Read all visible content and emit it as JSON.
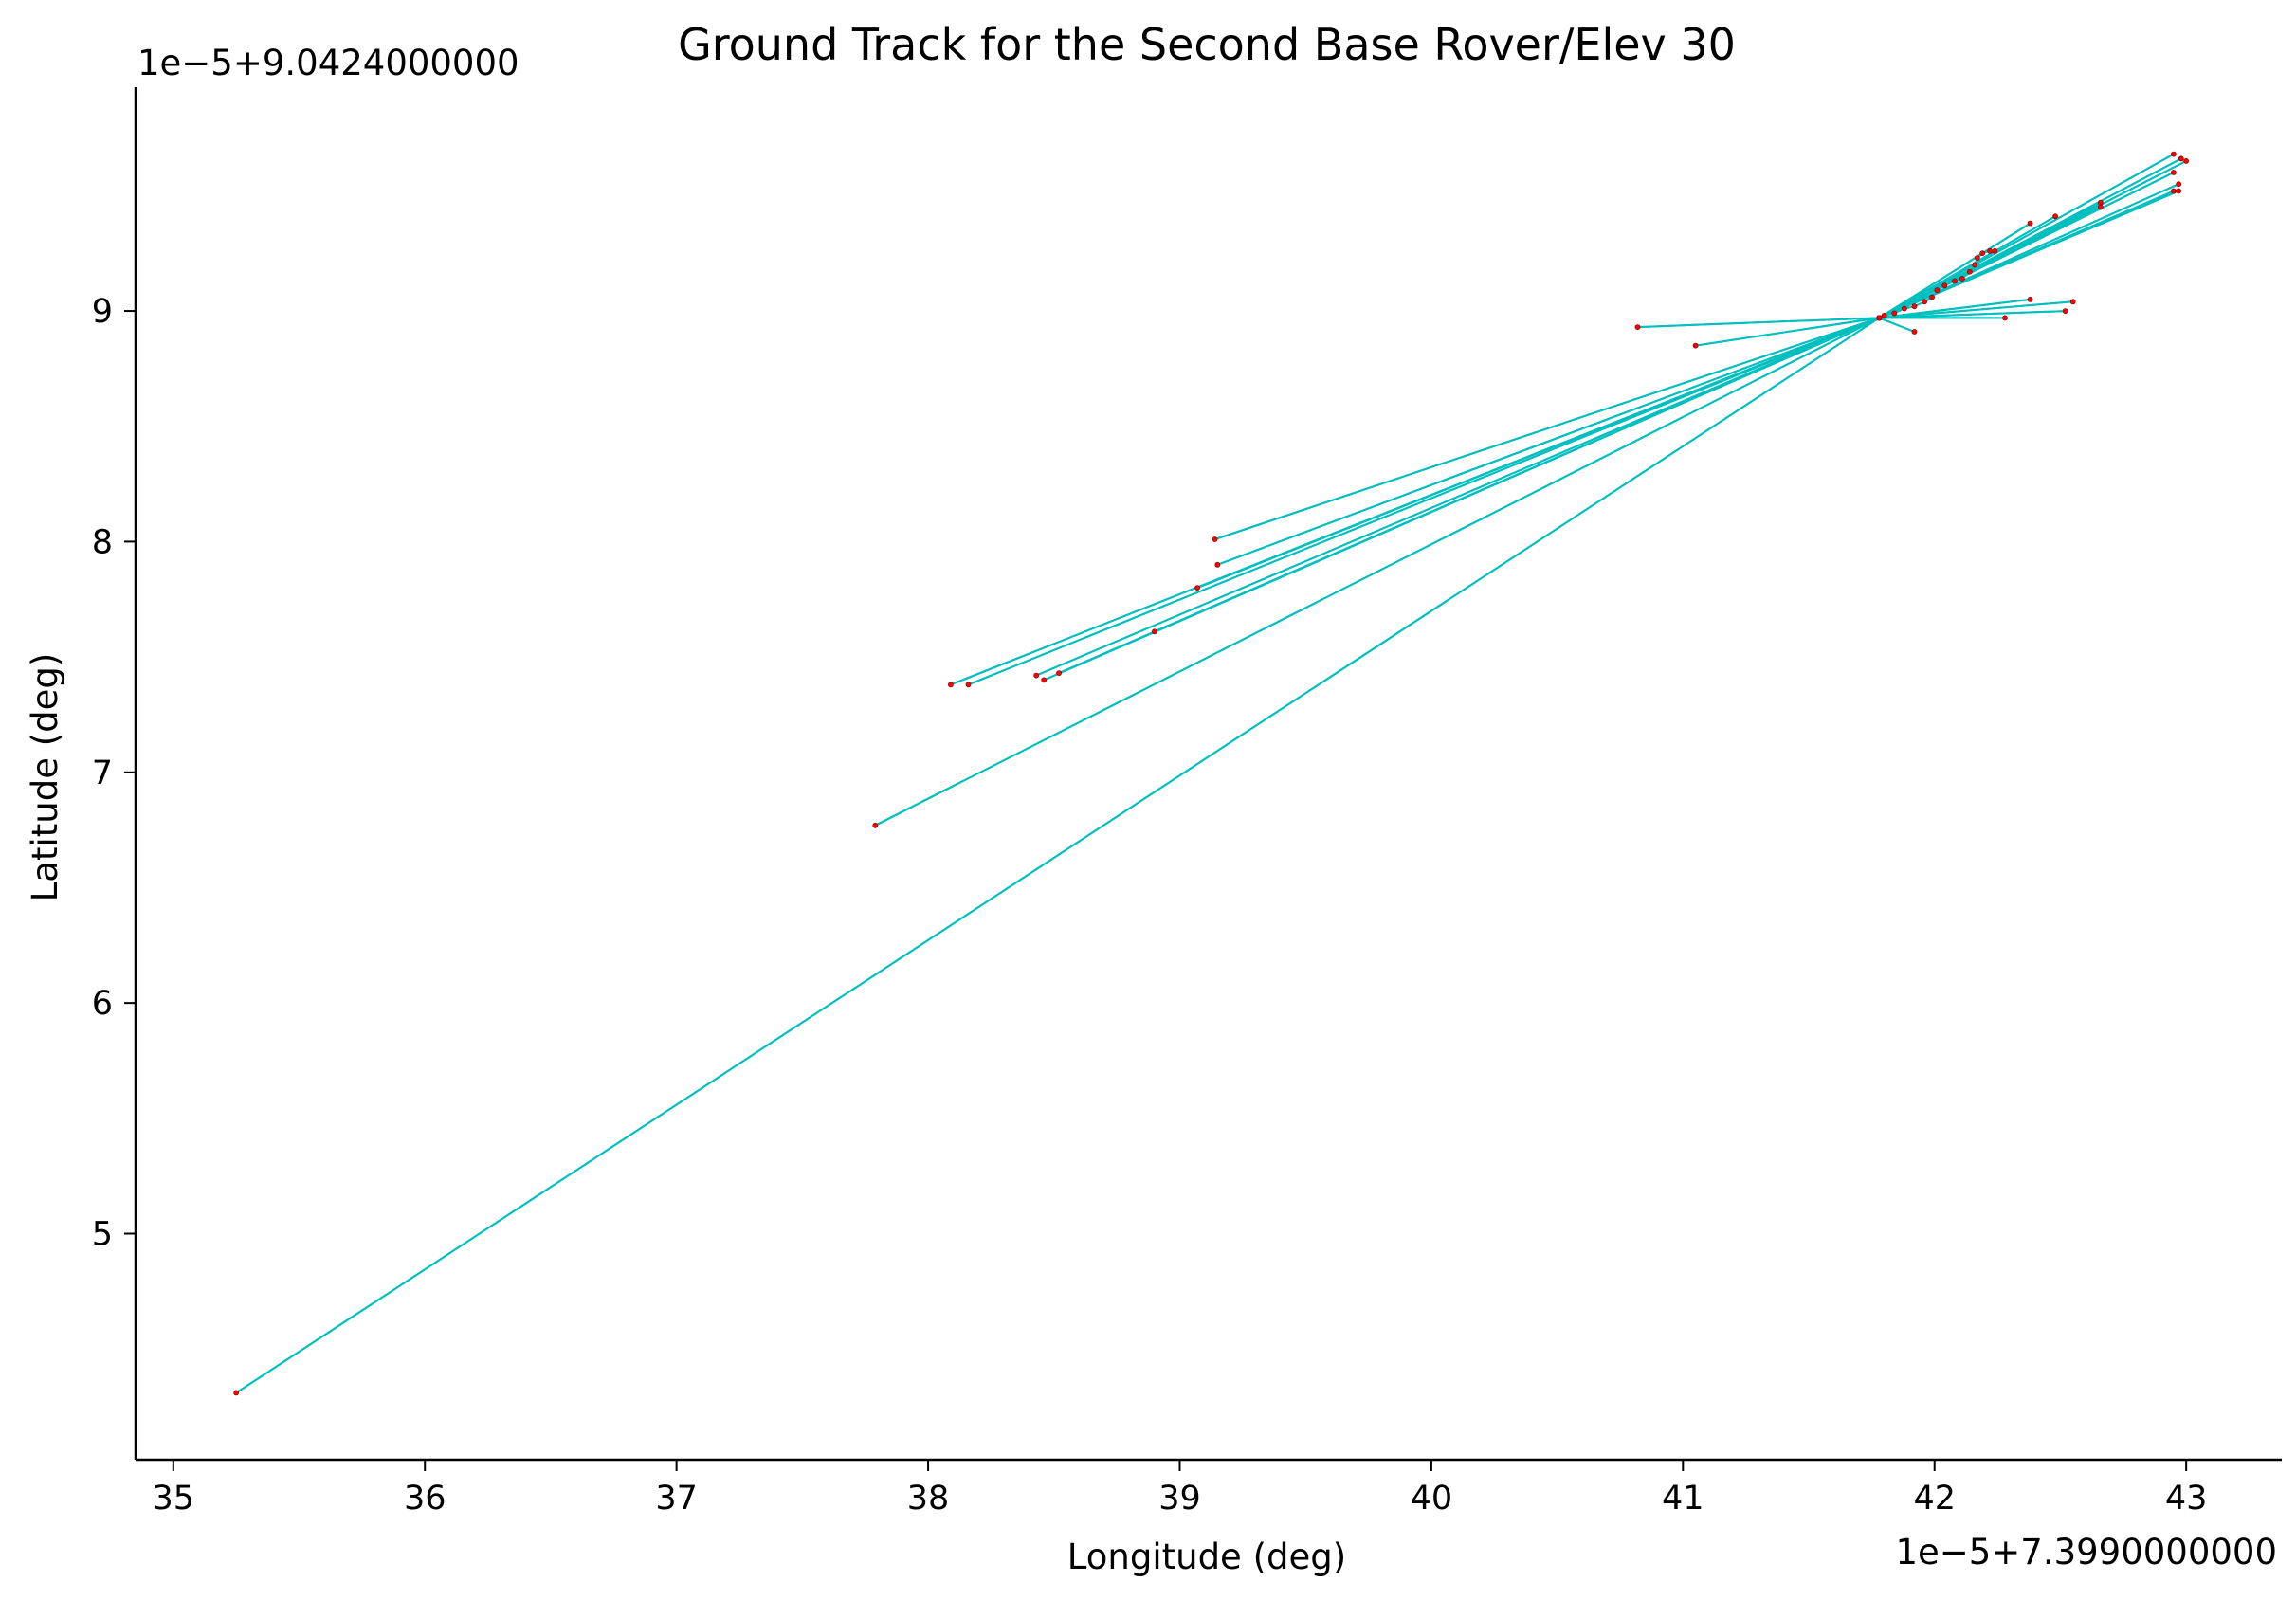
{
  "chart_data": {
    "type": "line",
    "title": "Ground Track for the Second Base Rover/Elev 30",
    "xlabel": "Longitude (deg)",
    "ylabel": "Latitude (deg)",
    "x_offset_label": "1e−5+7.3990000000",
    "y_offset_label": "1e−5+9.0424000000",
    "xlim": [
      34.85,
      43.38
    ],
    "ylim": [
      4.02,
      9.97
    ],
    "xticks": [
      35,
      36,
      37,
      38,
      39,
      40,
      41,
      42,
      43
    ],
    "yticks": [
      5,
      6,
      7,
      8,
      9
    ],
    "grid": false,
    "colors": {
      "line": "#00bfbf",
      "point": "#ff0000",
      "axis": "#000000"
    },
    "series": [
      {
        "style": "cyan line with small red point markers",
        "points": [
          [
            41.78,
            8.97
          ],
          [
            35.25,
            4.31
          ],
          [
            41.78,
            8.97
          ],
          [
            37.79,
            6.77
          ],
          [
            41.78,
            8.97
          ],
          [
            39.14,
            8.01
          ],
          [
            41.78,
            8.97
          ],
          [
            38.09,
            7.38
          ],
          [
            41.78,
            8.97
          ],
          [
            38.16,
            7.38
          ],
          [
            41.78,
            8.97
          ],
          [
            38.43,
            7.42
          ],
          [
            41.78,
            8.97
          ],
          [
            38.52,
            7.43
          ],
          [
            41.78,
            8.97
          ],
          [
            38.46,
            7.4
          ],
          [
            41.78,
            8.97
          ],
          [
            39.07,
            7.8
          ],
          [
            41.78,
            8.97
          ],
          [
            39.15,
            7.9
          ],
          [
            41.78,
            8.97
          ],
          [
            38.9,
            7.61
          ],
          [
            41.78,
            8.97
          ],
          [
            40.82,
            8.93
          ],
          [
            41.78,
            8.97
          ],
          [
            41.05,
            8.85
          ],
          [
            41.78,
            8.97
          ],
          [
            41.92,
            8.91
          ],
          [
            41.78,
            8.97
          ],
          [
            42.28,
            8.97
          ],
          [
            41.78,
            8.97
          ],
          [
            42.52,
            9.0
          ],
          [
            41.78,
            8.97
          ],
          [
            42.55,
            9.04
          ],
          [
            41.78,
            8.97
          ],
          [
            42.38,
            9.05
          ],
          [
            41.78,
            8.97
          ],
          [
            42.38,
            9.38
          ],
          [
            41.78,
            8.97
          ],
          [
            42.48,
            9.41
          ],
          [
            41.78,
            8.97
          ],
          [
            42.66,
            9.47
          ],
          [
            41.78,
            8.97
          ],
          [
            42.95,
            9.68
          ],
          [
            41.78,
            8.97
          ],
          [
            42.98,
            9.66
          ],
          [
            41.78,
            8.97
          ],
          [
            43.0,
            9.65
          ],
          [
            41.78,
            8.97
          ],
          [
            42.95,
            9.6
          ],
          [
            41.78,
            8.97
          ],
          [
            42.97,
            9.55
          ],
          [
            41.78,
            8.97
          ],
          [
            42.97,
            9.52
          ],
          [
            41.78,
            8.97
          ],
          [
            42.95,
            9.52
          ],
          [
            41.78,
            8.97
          ],
          [
            42.66,
            9.45
          ],
          [
            41.78,
            8.97
          ],
          [
            41.8,
            8.98
          ],
          [
            41.84,
            8.99
          ],
          [
            41.88,
            9.01
          ],
          [
            41.92,
            9.02
          ],
          [
            41.96,
            9.04
          ],
          [
            41.99,
            9.06
          ],
          [
            42.01,
            9.09
          ],
          [
            42.04,
            9.11
          ],
          [
            42.08,
            9.13
          ],
          [
            42.11,
            9.14
          ],
          [
            42.14,
            9.17
          ],
          [
            42.16,
            9.2
          ],
          [
            42.17,
            9.23
          ],
          [
            42.19,
            9.25
          ],
          [
            42.22,
            9.26
          ],
          [
            42.24,
            9.26
          ]
        ]
      }
    ]
  }
}
